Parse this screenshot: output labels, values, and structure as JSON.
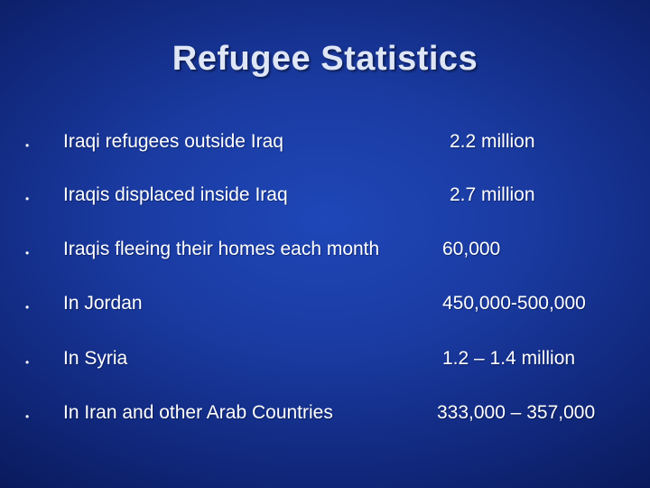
{
  "slide": {
    "title": "Refugee Statistics",
    "rows": [
      {
        "label": "Iraqi refugees outside Iraq",
        "value": "2.2 million"
      },
      {
        "label": "Iraqis displaced inside Iraq",
        "value": "2.7 million"
      },
      {
        "label": "Iraqis fleeing their homes each month",
        "value": "60,000"
      },
      {
        "label": "In Jordan",
        "value": "450,000-500,000"
      },
      {
        "label": "In Syria",
        "value": "1.2 – 1.4 million"
      },
      {
        "label": "In Iran and other Arab Countries",
        "value": "333,000 – 357,000"
      }
    ],
    "bullet_glyph": "•"
  },
  "colors": {
    "background_center": "#1f47b8",
    "background_edge": "#0a1a5c",
    "title_text": "#dfe6f5",
    "body_text": "#ffffff"
  }
}
